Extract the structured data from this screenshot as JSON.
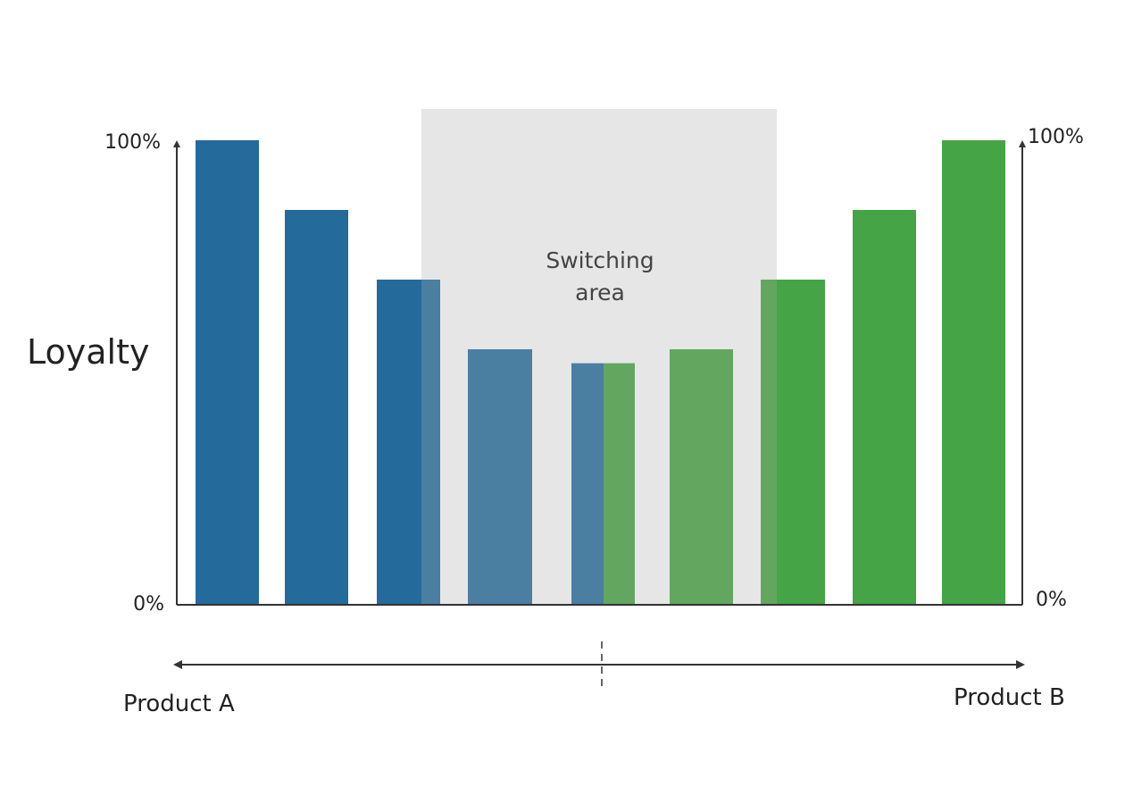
{
  "chart_data": {
    "type": "bar",
    "title": "",
    "ylabel": "Loyalty",
    "xlabel": "",
    "ylim": [
      0,
      100
    ],
    "y_tick_labels_left": [
      "100%",
      "0%"
    ],
    "y_tick_labels_right": [
      "100%",
      "0%"
    ],
    "x_axis_end_labels": {
      "left": "Product A",
      "right": "Product B"
    },
    "switching_area": {
      "label_lines": [
        "Switching",
        "area"
      ],
      "range_bars": [
        2,
        7
      ]
    },
    "series": [
      {
        "name": "Product A loyalty",
        "color": "#246a9b",
        "faded_color": "#4a7fa2",
        "values": [
          100,
          85,
          70,
          55,
          52
        ]
      },
      {
        "name": "Product B loyalty",
        "color": "#45a446",
        "faded_color": "#62a660",
        "values": [
          52,
          55,
          70,
          85,
          100
        ]
      }
    ],
    "bars": [
      {
        "value": 100,
        "series": "A"
      },
      {
        "value": 85,
        "series": "A"
      },
      {
        "value": 70,
        "series": "A"
      },
      {
        "value": 55,
        "series": "A"
      },
      {
        "value": 52,
        "series": "A+B"
      },
      {
        "value": 55,
        "series": "B"
      },
      {
        "value": 70,
        "series": "B"
      },
      {
        "value": 85,
        "series": "B"
      },
      {
        "value": 100,
        "series": "B"
      }
    ]
  },
  "colors": {
    "axis": "#333333",
    "switching_bg": "#e6e6e6",
    "text": "#222222",
    "switching_text": "#444444"
  }
}
